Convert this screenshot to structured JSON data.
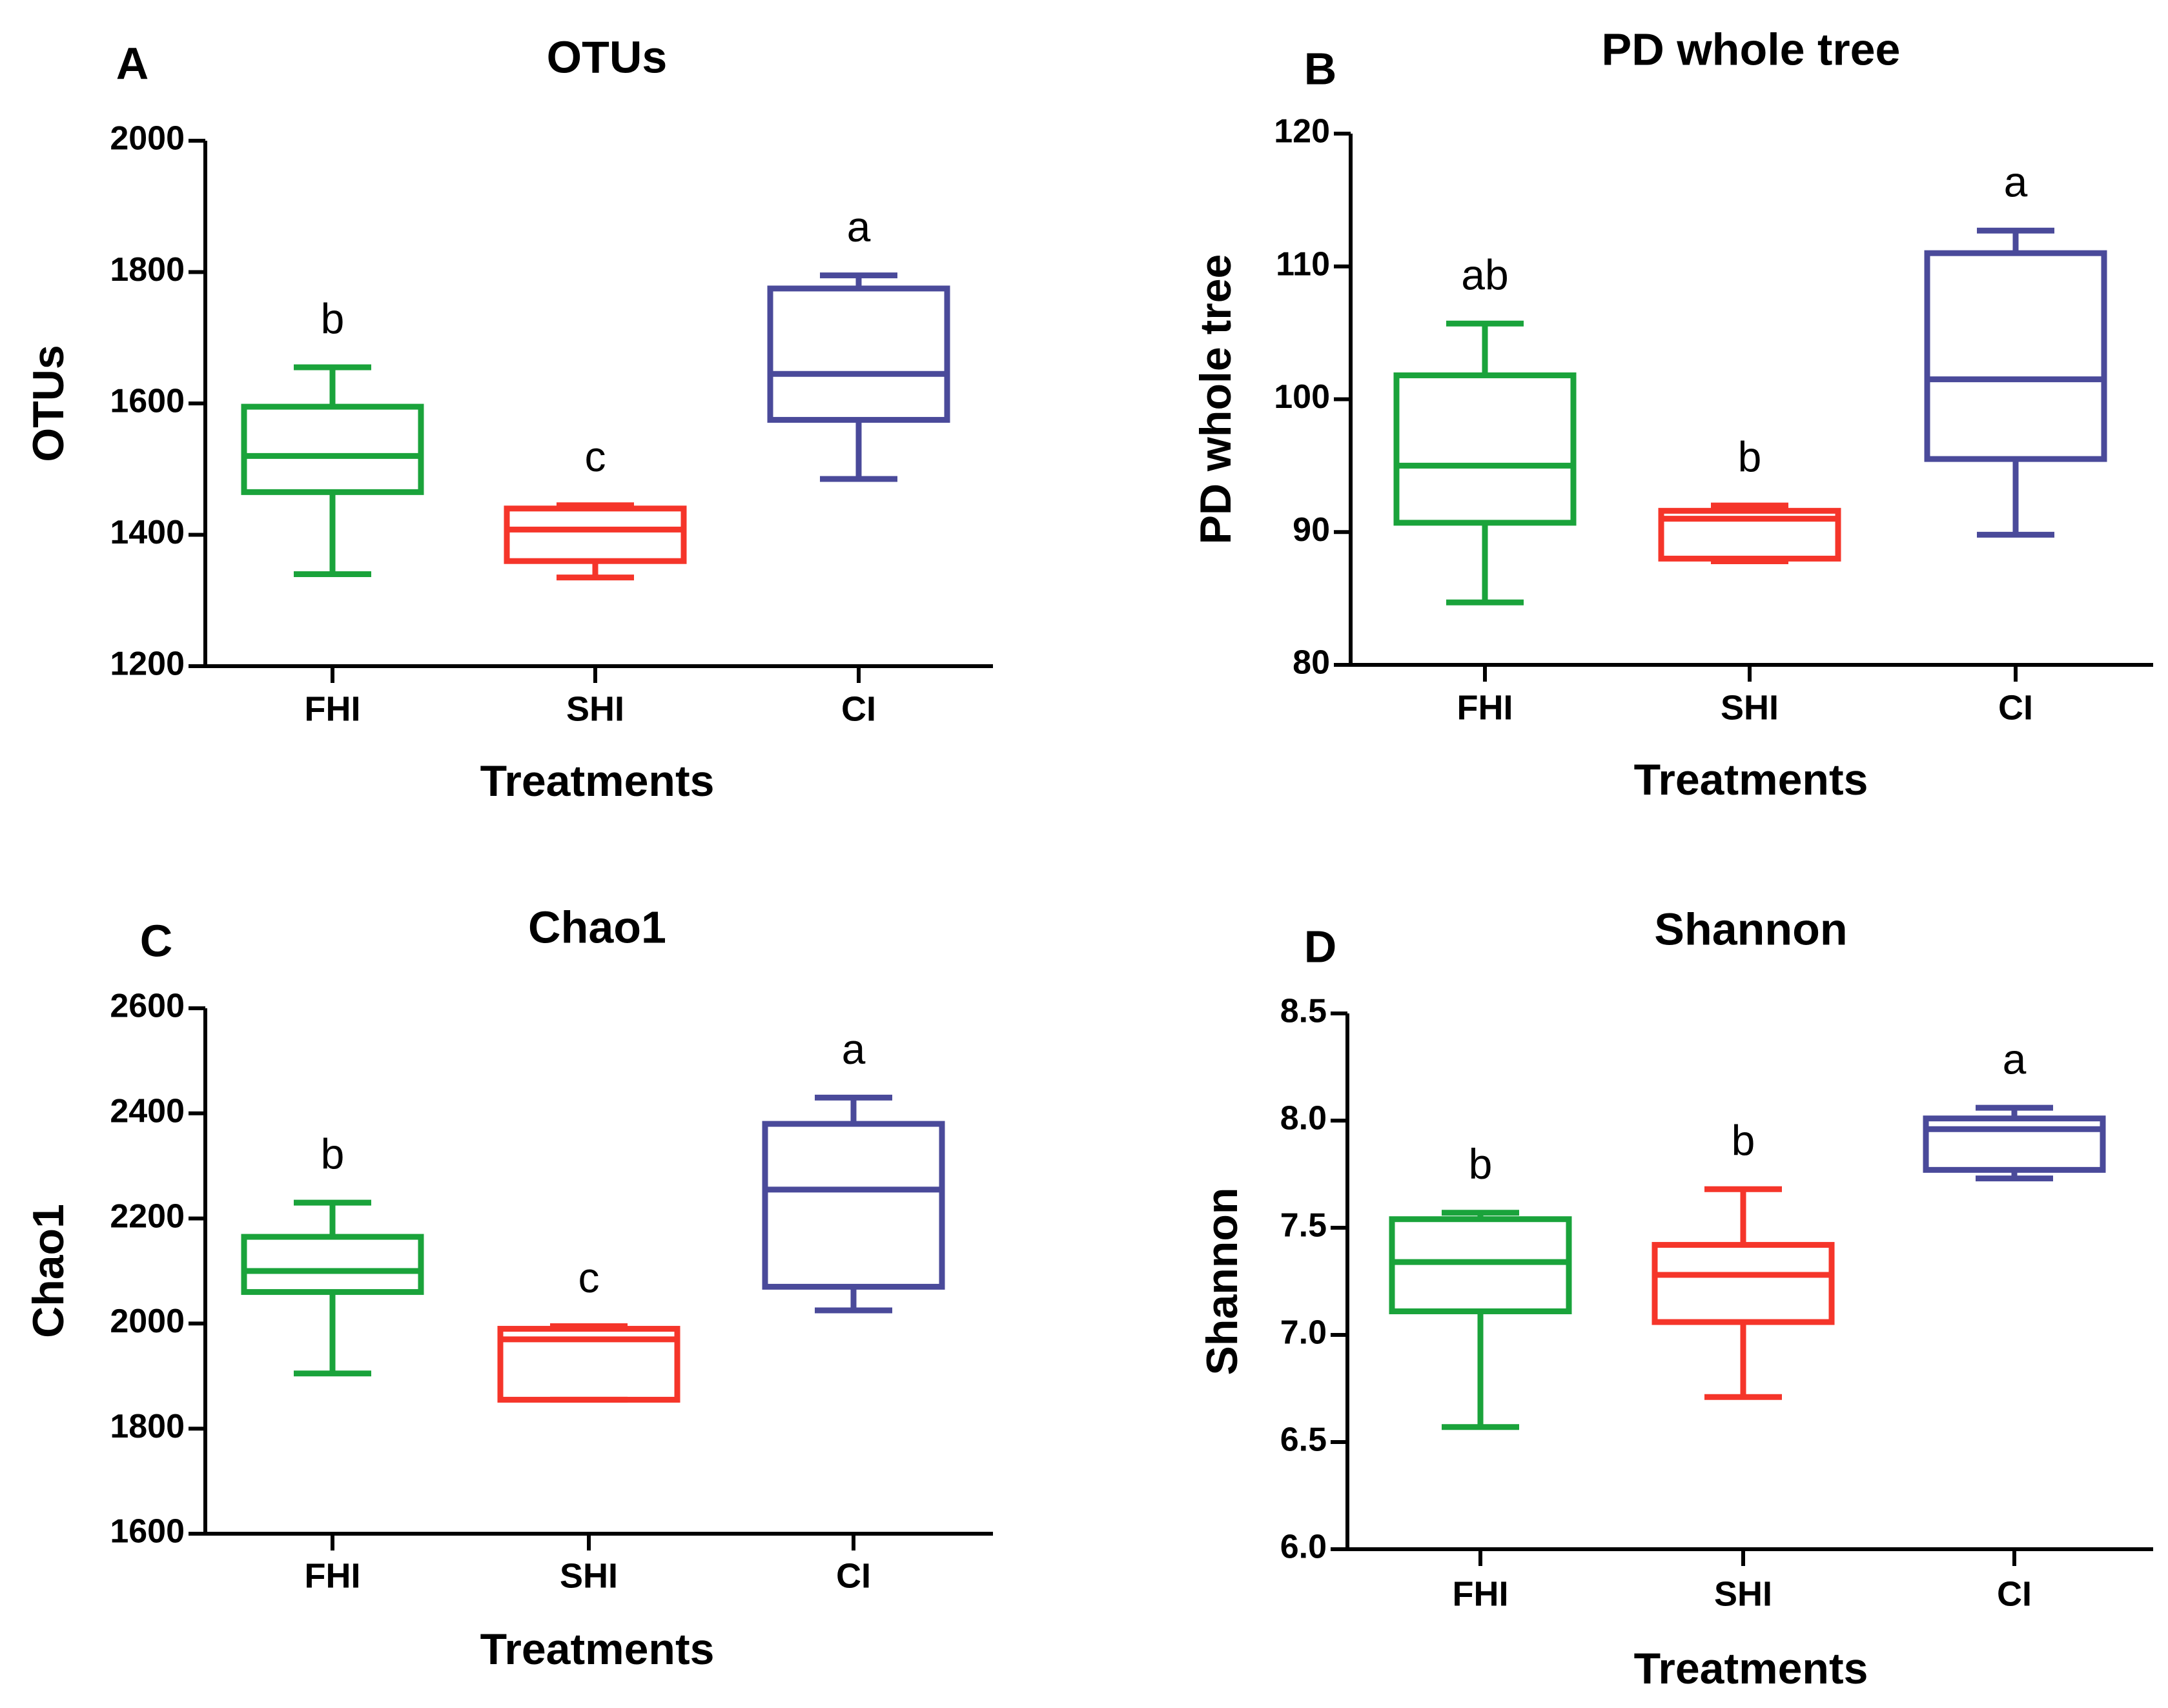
{
  "colors": {
    "FHI": "#1aa33b",
    "SHI": "#f5352a",
    "CI": "#4a4a9a",
    "axis": "#000000"
  },
  "chart_data": [
    {
      "type": "box",
      "panel": "A",
      "title": "OTUs",
      "ylabel": "OTUs",
      "xlabel": "Treatments",
      "categories": [
        "FHI",
        "SHI",
        "CI"
      ],
      "ylim": [
        1200,
        2000
      ],
      "yticks": [
        1200,
        1400,
        1600,
        1800,
        2000
      ],
      "ytick_labels": [
        "1200",
        "1400",
        "1600",
        "1800",
        "2000"
      ],
      "boxes": [
        {
          "category": "FHI",
          "min": 1340,
          "q1": 1465,
          "median": 1520,
          "q3": 1595,
          "max": 1655,
          "sig": "b"
        },
        {
          "category": "SHI",
          "min": 1335,
          "q1": 1360,
          "median": 1408,
          "q3": 1440,
          "max": 1445,
          "sig": "c"
        },
        {
          "category": "CI",
          "min": 1485,
          "q1": 1575,
          "median": 1645,
          "q3": 1775,
          "max": 1795,
          "sig": "a"
        }
      ]
    },
    {
      "type": "box",
      "panel": "B",
      "title": "PD whole tree",
      "ylabel": "PD whole tree",
      "xlabel": "Treatments",
      "categories": [
        "FHI",
        "SHI",
        "CI"
      ],
      "ylim": [
        80,
        120
      ],
      "yticks": [
        80,
        90,
        100,
        110,
        120
      ],
      "ytick_labels": [
        "80",
        "90",
        "100",
        "110",
        "120"
      ],
      "boxes": [
        {
          "category": "FHI",
          "min": 84.7,
          "q1": 90.7,
          "median": 95.0,
          "q3": 101.8,
          "max": 105.7,
          "sig": "ab"
        },
        {
          "category": "SHI",
          "min": 87.8,
          "q1": 88.0,
          "median": 91.0,
          "q3": 91.6,
          "max": 92.0,
          "sig": "b"
        },
        {
          "category": "CI",
          "min": 89.8,
          "q1": 95.5,
          "median": 101.5,
          "q3": 111.0,
          "max": 112.7,
          "sig": "a"
        }
      ]
    },
    {
      "type": "box",
      "panel": "C",
      "title": "Chao1",
      "ylabel": "Chao1",
      "xlabel": "Treatments",
      "categories": [
        "FHI",
        "SHI",
        "CI"
      ],
      "ylim": [
        1600,
        2600
      ],
      "yticks": [
        1600,
        1800,
        2000,
        2200,
        2400,
        2600
      ],
      "ytick_labels": [
        "1600",
        "1800",
        "2000",
        "2200",
        "2400",
        "2600"
      ],
      "boxes": [
        {
          "category": "FHI",
          "min": 1905,
          "q1": 2060,
          "median": 2100,
          "q3": 2165,
          "max": 2230,
          "sig": "b"
        },
        {
          "category": "SHI",
          "min": 1855,
          "q1": 1855,
          "median": 1970,
          "q3": 1990,
          "max": 1995,
          "sig": "c"
        },
        {
          "category": "CI",
          "min": 2025,
          "q1": 2070,
          "median": 2255,
          "q3": 2380,
          "max": 2430,
          "sig": "a"
        }
      ]
    },
    {
      "type": "box",
      "panel": "D",
      "title": "Shannon",
      "ylabel": "Shannon",
      "xlabel": "Treatments",
      "categories": [
        "FHI",
        "SHI",
        "CI"
      ],
      "ylim": [
        6.0,
        8.5
      ],
      "yticks": [
        6.0,
        6.5,
        7.0,
        7.5,
        8.0,
        8.5
      ],
      "ytick_labels": [
        "6.0",
        "6.5",
        "7.0",
        "7.5",
        "8.0",
        "8.5"
      ],
      "boxes": [
        {
          "category": "FHI",
          "min": 6.57,
          "q1": 7.11,
          "median": 7.34,
          "q3": 7.54,
          "max": 7.57,
          "sig": "b"
        },
        {
          "category": "SHI",
          "min": 6.71,
          "q1": 7.06,
          "median": 7.28,
          "q3": 7.42,
          "max": 7.68,
          "sig": "b"
        },
        {
          "category": "CI",
          "min": 7.73,
          "q1": 7.77,
          "median": 7.96,
          "q3": 8.01,
          "max": 8.06,
          "sig": "a"
        }
      ]
    }
  ]
}
